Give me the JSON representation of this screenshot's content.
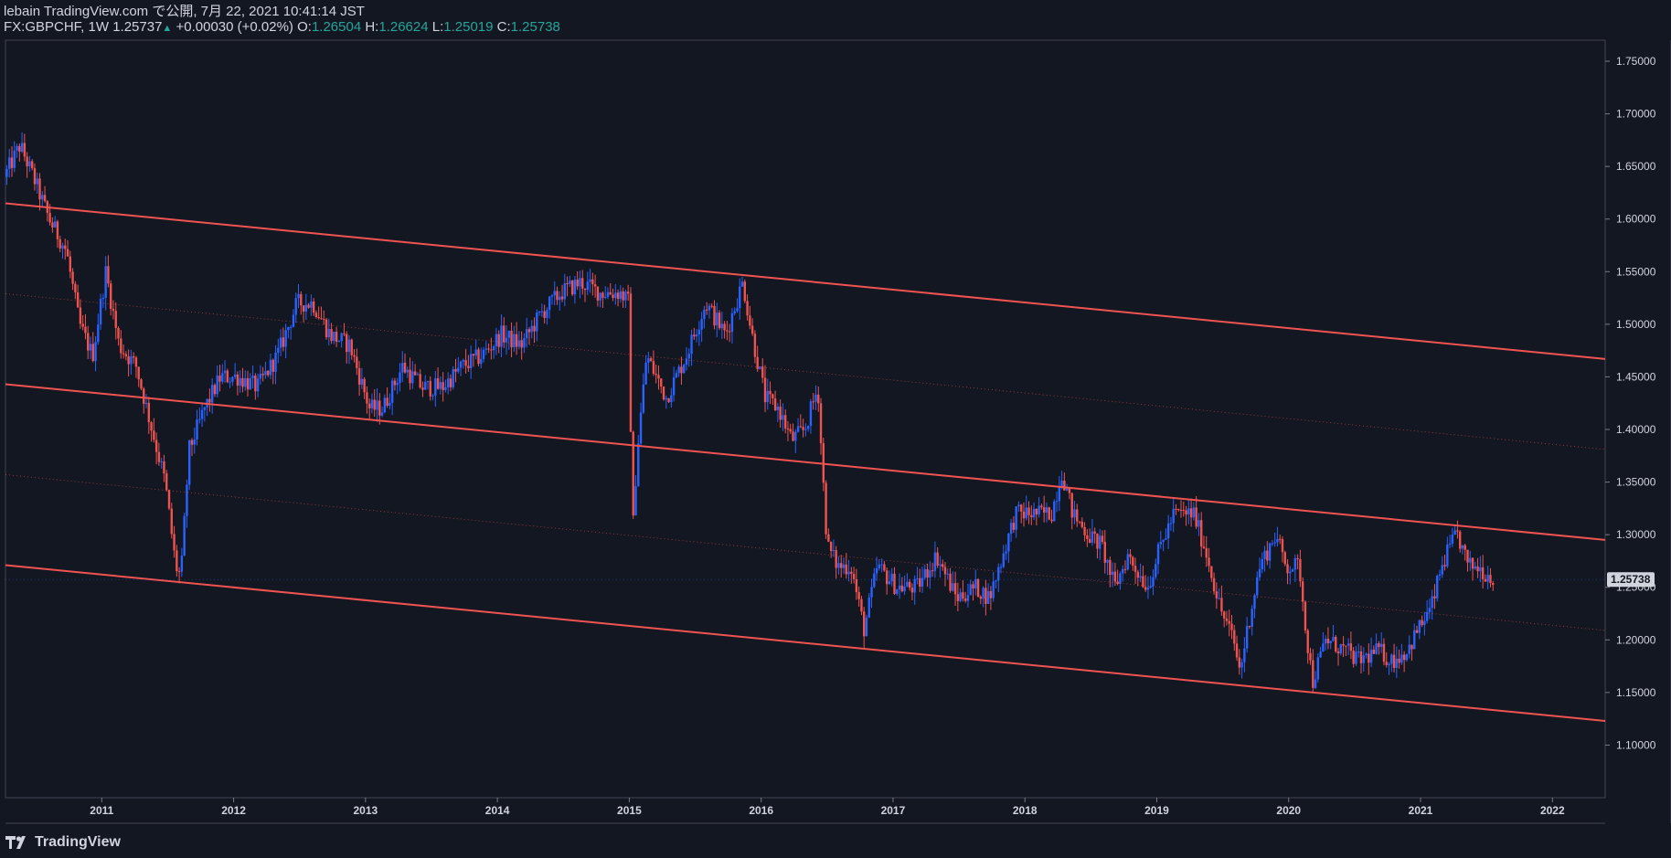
{
  "header": {
    "published": "lebain TradingView.com で公開, 7月 22, 2021 10:41:14 JST",
    "symbol": "FX:GBPCHF, 1W",
    "last": "1.25737",
    "change": "+0.00030 (+0.02%)",
    "o_label": "O:",
    "o_value": "1.26504",
    "h_label": "H:",
    "h_value": "1.26624",
    "l_label": "L:",
    "l_value": "1.25019",
    "c_label": "C:",
    "c_value": "1.25738"
  },
  "footer": {
    "brand": "TradingView",
    "logo_icon": "tradingview-logo-icon"
  },
  "colors": {
    "background": "#131722",
    "up": "#2962ff",
    "down": "#ef5350",
    "channel": "#f05350",
    "text": "#d1d4dc",
    "price_label_bg": "#d1d4dc"
  },
  "chart_data": {
    "type": "candlestick",
    "symbol": "FX:GBPCHF",
    "interval": "1W",
    "ylim": [
      1.05,
      1.77
    ],
    "y_ticks": [
      "1.10000",
      "1.15000",
      "1.20000",
      "1.25000",
      "1.30000",
      "1.35000",
      "1.40000",
      "1.45000",
      "1.50000",
      "1.55000",
      "1.60000",
      "1.65000",
      "1.70000",
      "1.75000"
    ],
    "y_tick_values": [
      1.1,
      1.15,
      1.2,
      1.25,
      1.3,
      1.35,
      1.4,
      1.45,
      1.5,
      1.55,
      1.6,
      1.65,
      1.7,
      1.75
    ],
    "x_ticks": [
      "2011",
      "2012",
      "2013",
      "2014",
      "2015",
      "2016",
      "2017",
      "2018",
      "2019",
      "2020",
      "2021",
      "2022"
    ],
    "x_tick_years": [
      2011,
      2012,
      2013,
      2014,
      2015,
      2016,
      2017,
      2018,
      2019,
      2020,
      2021,
      2022
    ],
    "xlim": [
      2010.27,
      2022.4
    ],
    "current_price": "1.25738",
    "current_price_value": 1.25738,
    "series_keypoints": [
      [
        2010.28,
        1.64
      ],
      [
        2010.4,
        1.67
      ],
      [
        2010.5,
        1.64
      ],
      [
        2010.62,
        1.6
      ],
      [
        2010.75,
        1.57
      ],
      [
        2010.85,
        1.5
      ],
      [
        2010.95,
        1.47
      ],
      [
        2011.05,
        1.55
      ],
      [
        2011.15,
        1.48
      ],
      [
        2011.28,
        1.46
      ],
      [
        2011.4,
        1.4
      ],
      [
        2011.5,
        1.35
      ],
      [
        2011.58,
        1.27
      ],
      [
        2011.62,
        1.26
      ],
      [
        2011.68,
        1.38
      ],
      [
        2011.8,
        1.42
      ],
      [
        2011.92,
        1.45
      ],
      [
        2012.05,
        1.45
      ],
      [
        2012.2,
        1.44
      ],
      [
        2012.35,
        1.47
      ],
      [
        2012.5,
        1.52
      ],
      [
        2012.62,
        1.52
      ],
      [
        2012.75,
        1.49
      ],
      [
        2012.9,
        1.48
      ],
      [
        2013.05,
        1.42
      ],
      [
        2013.15,
        1.42
      ],
      [
        2013.3,
        1.46
      ],
      [
        2013.45,
        1.44
      ],
      [
        2013.6,
        1.44
      ],
      [
        2013.75,
        1.46
      ],
      [
        2013.9,
        1.47
      ],
      [
        2014.05,
        1.49
      ],
      [
        2014.2,
        1.48
      ],
      [
        2014.35,
        1.51
      ],
      [
        2014.5,
        1.53
      ],
      [
        2014.65,
        1.54
      ],
      [
        2014.8,
        1.53
      ],
      [
        2014.95,
        1.53
      ],
      [
        2015.02,
        1.52
      ],
      [
        2015.04,
        1.29
      ],
      [
        2015.08,
        1.38
      ],
      [
        2015.15,
        1.47
      ],
      [
        2015.3,
        1.43
      ],
      [
        2015.45,
        1.47
      ],
      [
        2015.6,
        1.52
      ],
      [
        2015.75,
        1.49
      ],
      [
        2015.88,
        1.54
      ],
      [
        2015.95,
        1.49
      ],
      [
        2016.05,
        1.43
      ],
      [
        2016.15,
        1.42
      ],
      [
        2016.25,
        1.39
      ],
      [
        2016.35,
        1.4
      ],
      [
        2016.45,
        1.44
      ],
      [
        2016.48,
        1.37
      ],
      [
        2016.52,
        1.29
      ],
      [
        2016.6,
        1.27
      ],
      [
        2016.7,
        1.27
      ],
      [
        2016.8,
        1.21
      ],
      [
        2016.9,
        1.27
      ],
      [
        2017.05,
        1.25
      ],
      [
        2017.2,
        1.25
      ],
      [
        2017.35,
        1.28
      ],
      [
        2017.5,
        1.24
      ],
      [
        2017.65,
        1.25
      ],
      [
        2017.75,
        1.24
      ],
      [
        2017.85,
        1.28
      ],
      [
        2017.95,
        1.32
      ],
      [
        2018.1,
        1.32
      ],
      [
        2018.22,
        1.32
      ],
      [
        2018.3,
        1.36
      ],
      [
        2018.38,
        1.32
      ],
      [
        2018.5,
        1.3
      ],
      [
        2018.6,
        1.29
      ],
      [
        2018.7,
        1.25
      ],
      [
        2018.8,
        1.28
      ],
      [
        2018.95,
        1.25
      ],
      [
        2019.05,
        1.29
      ],
      [
        2019.15,
        1.32
      ],
      [
        2019.3,
        1.32
      ],
      [
        2019.4,
        1.28
      ],
      [
        2019.5,
        1.23
      ],
      [
        2019.6,
        1.2
      ],
      [
        2019.65,
        1.17
      ],
      [
        2019.72,
        1.22
      ],
      [
        2019.8,
        1.27
      ],
      [
        2019.92,
        1.3
      ],
      [
        2020.0,
        1.27
      ],
      [
        2020.1,
        1.27
      ],
      [
        2020.15,
        1.21
      ],
      [
        2020.2,
        1.16
      ],
      [
        2020.3,
        1.2
      ],
      [
        2020.45,
        1.19
      ],
      [
        2020.55,
        1.18
      ],
      [
        2020.7,
        1.19
      ],
      [
        2020.8,
        1.18
      ],
      [
        2020.92,
        1.19
      ],
      [
        2021.0,
        1.21
      ],
      [
        2021.1,
        1.23
      ],
      [
        2021.18,
        1.27
      ],
      [
        2021.25,
        1.29
      ],
      [
        2021.3,
        1.3
      ],
      [
        2021.38,
        1.27
      ],
      [
        2021.45,
        1.27
      ],
      [
        2021.55,
        1.26
      ]
    ],
    "channel_lines": [
      {
        "style": "solid",
        "x1": 2010.27,
        "y1": 1.615,
        "x2": 2022.4,
        "y2": 1.467
      },
      {
        "style": "solid",
        "x1": 2010.27,
        "y1": 1.443,
        "x2": 2022.4,
        "y2": 1.295
      },
      {
        "style": "solid",
        "x1": 2010.27,
        "y1": 1.271,
        "x2": 2022.4,
        "y2": 1.123
      },
      {
        "style": "dotted",
        "x1": 2010.27,
        "y1": 1.529,
        "x2": 2022.4,
        "y2": 1.381
      },
      {
        "style": "dotted",
        "x1": 2010.27,
        "y1": 1.357,
        "x2": 2022.4,
        "y2": 1.209
      }
    ]
  }
}
